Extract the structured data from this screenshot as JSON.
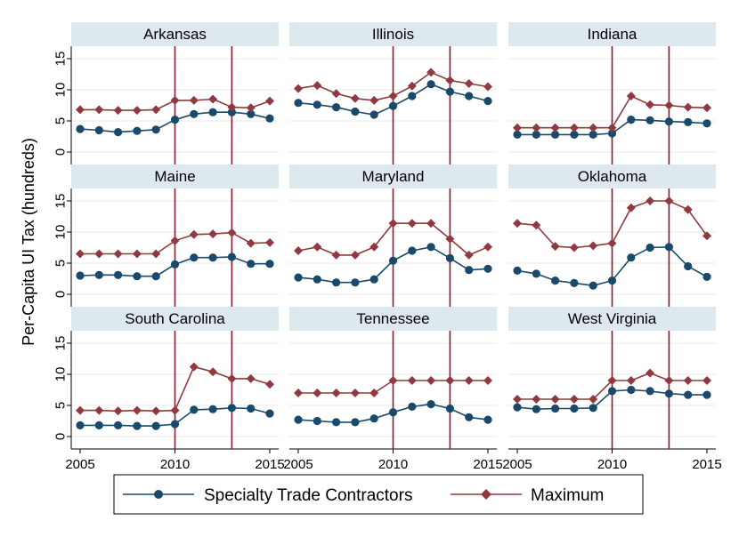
{
  "chart_data": {
    "type": "line",
    "layout": "small-multiples 3x3",
    "ylabel": "Per-Capita UI Tax (hundreds)",
    "x": [
      2005,
      2006,
      2007,
      2008,
      2009,
      2010,
      2011,
      2012,
      2013,
      2014,
      2015
    ],
    "xticks": [
      "2005",
      "2010",
      "2015"
    ],
    "ylim": [
      -2,
      17
    ],
    "yticks": [
      "0",
      "5",
      "10",
      "15"
    ],
    "vlines": [
      2010,
      2013
    ],
    "legend": {
      "position": "bottom",
      "entries": [
        "Specialty Trade Contractors",
        "Maximum"
      ]
    },
    "series_colors": {
      "specialty": "#1a4a6b",
      "maximum": "#903a3f"
    },
    "panels": [
      {
        "title": "Arkansas",
        "specialty": [
          3.7,
          3.5,
          3.2,
          3.4,
          3.6,
          5.2,
          6.1,
          6.4,
          6.4,
          6.1,
          5.4
        ],
        "maximum": [
          6.8,
          6.8,
          6.7,
          6.7,
          6.8,
          8.3,
          8.3,
          8.5,
          7.2,
          7.1,
          8.2
        ]
      },
      {
        "title": "Illinois",
        "specialty": [
          7.9,
          7.6,
          7.2,
          6.5,
          6.0,
          7.4,
          9.0,
          10.9,
          9.7,
          9.0,
          8.2
        ],
        "maximum": [
          10.2,
          10.7,
          9.4,
          8.6,
          8.3,
          9.0,
          10.6,
          12.8,
          11.5,
          11.0,
          10.5
        ]
      },
      {
        "title": "Indiana",
        "specialty": [
          2.8,
          2.8,
          2.8,
          2.8,
          2.8,
          3.0,
          5.2,
          5.1,
          4.9,
          4.8,
          4.6
        ],
        "maximum": [
          3.9,
          3.9,
          3.9,
          3.9,
          3.9,
          3.9,
          9.0,
          7.6,
          7.5,
          7.2,
          7.1
        ]
      },
      {
        "title": "Maine",
        "specialty": [
          3.0,
          3.1,
          3.1,
          2.9,
          2.9,
          4.8,
          5.9,
          5.9,
          6.0,
          4.9,
          4.9
        ],
        "maximum": [
          6.5,
          6.5,
          6.5,
          6.5,
          6.5,
          8.6,
          9.6,
          9.7,
          9.9,
          8.2,
          8.3
        ]
      },
      {
        "title": "Maryland",
        "specialty": [
          2.7,
          2.4,
          1.9,
          1.9,
          2.4,
          5.4,
          7.0,
          7.6,
          5.8,
          3.9,
          4.1
        ],
        "maximum": [
          7.0,
          7.6,
          6.3,
          6.3,
          7.6,
          11.4,
          11.4,
          11.4,
          8.9,
          6.3,
          7.6
        ]
      },
      {
        "title": "Oklahoma",
        "specialty": [
          3.8,
          3.3,
          2.2,
          1.8,
          1.4,
          2.2,
          5.9,
          7.5,
          7.6,
          4.5,
          2.8
        ],
        "maximum": [
          11.4,
          11.1,
          7.7,
          7.5,
          7.8,
          8.2,
          13.9,
          15.0,
          15.0,
          13.6,
          9.4
        ]
      },
      {
        "title": "South Carolina",
        "specialty": [
          1.8,
          1.8,
          1.8,
          1.7,
          1.7,
          2.0,
          4.3,
          4.4,
          4.6,
          4.5,
          3.7
        ],
        "maximum": [
          4.2,
          4.2,
          4.1,
          4.2,
          4.1,
          4.2,
          11.2,
          10.4,
          9.3,
          9.3,
          8.4
        ]
      },
      {
        "title": "Tennessee",
        "specialty": [
          2.7,
          2.5,
          2.3,
          2.3,
          2.9,
          3.9,
          4.8,
          5.2,
          4.5,
          3.1,
          2.7
        ],
        "maximum": [
          7.0,
          7.0,
          7.0,
          7.0,
          7.0,
          9.0,
          9.0,
          9.0,
          9.0,
          9.0,
          9.0
        ]
      },
      {
        "title": "West Virginia",
        "specialty": [
          4.7,
          4.4,
          4.5,
          4.5,
          4.6,
          7.3,
          7.5,
          7.3,
          6.9,
          6.7,
          6.7
        ],
        "maximum": [
          6.0,
          6.0,
          6.0,
          6.0,
          6.0,
          9.0,
          9.0,
          10.2,
          9.0,
          9.0,
          9.0
        ]
      }
    ]
  }
}
